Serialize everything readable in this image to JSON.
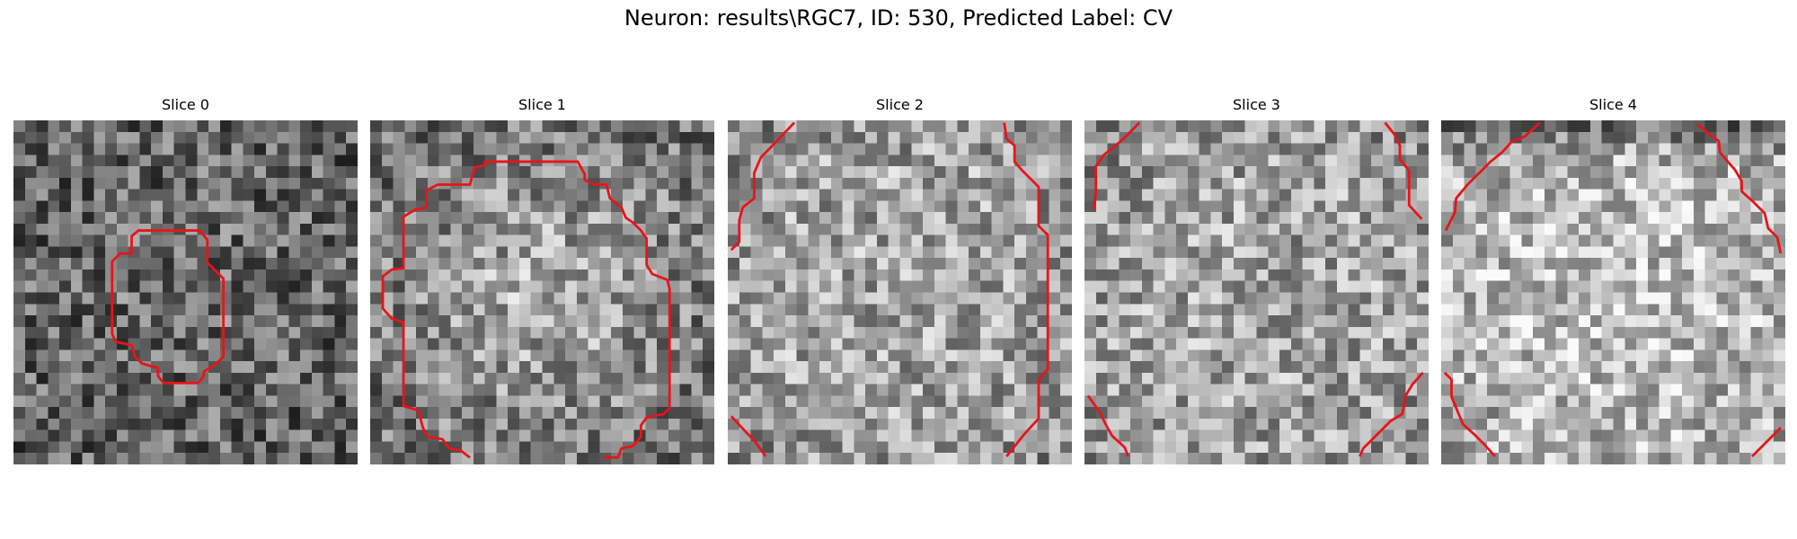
{
  "figure": {
    "title": "Neuron: results\\RGC7, ID: 530, Predicted Label: CV"
  },
  "panels": [
    {
      "title": "Slice 0",
      "seed": 11,
      "profile": "dark"
    },
    {
      "title": "Slice 1",
      "seed": 23,
      "profile": "center-bright"
    },
    {
      "title": "Slice 2",
      "seed": 37,
      "profile": "flat-bright"
    },
    {
      "title": "Slice 3",
      "seed": 41,
      "profile": "flat-bright"
    },
    {
      "title": "Slice 4",
      "seed": 53,
      "profile": "bright-center-dark-top"
    }
  ],
  "colors": {
    "contour": "#e8141a",
    "background": "#ffffff"
  }
}
